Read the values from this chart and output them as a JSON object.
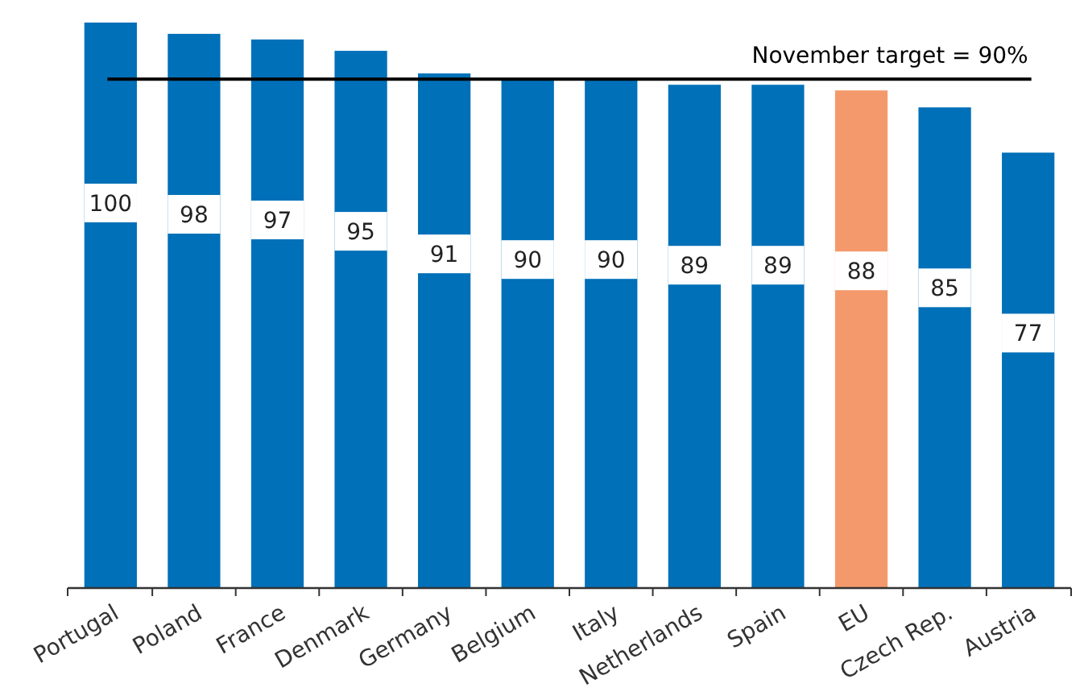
{
  "chart_data": {
    "type": "bar",
    "categories": [
      "Portugal",
      "Poland",
      "France",
      "Denmark",
      "Germany",
      "Belgium",
      "Italy",
      "Netherlands",
      "Spain",
      "EU",
      "Czech Rep.",
      "Austria"
    ],
    "values": [
      100,
      98,
      97,
      95,
      91,
      90,
      90,
      89,
      89,
      88,
      85,
      77
    ],
    "colors": [
      "#0070b8",
      "#0070b8",
      "#0070b8",
      "#0070b8",
      "#0070b8",
      "#0070b8",
      "#0070b8",
      "#0070b8",
      "#0070b8",
      "#f4996b",
      "#0070b8",
      "#0070b8"
    ],
    "ylim": [
      0,
      100
    ],
    "tick_labels": "x",
    "data_labels": true,
    "ref_lines": [
      {
        "axis": "y",
        "value": 90,
        "label": "November target = 90%",
        "color": "#000000"
      }
    ]
  }
}
